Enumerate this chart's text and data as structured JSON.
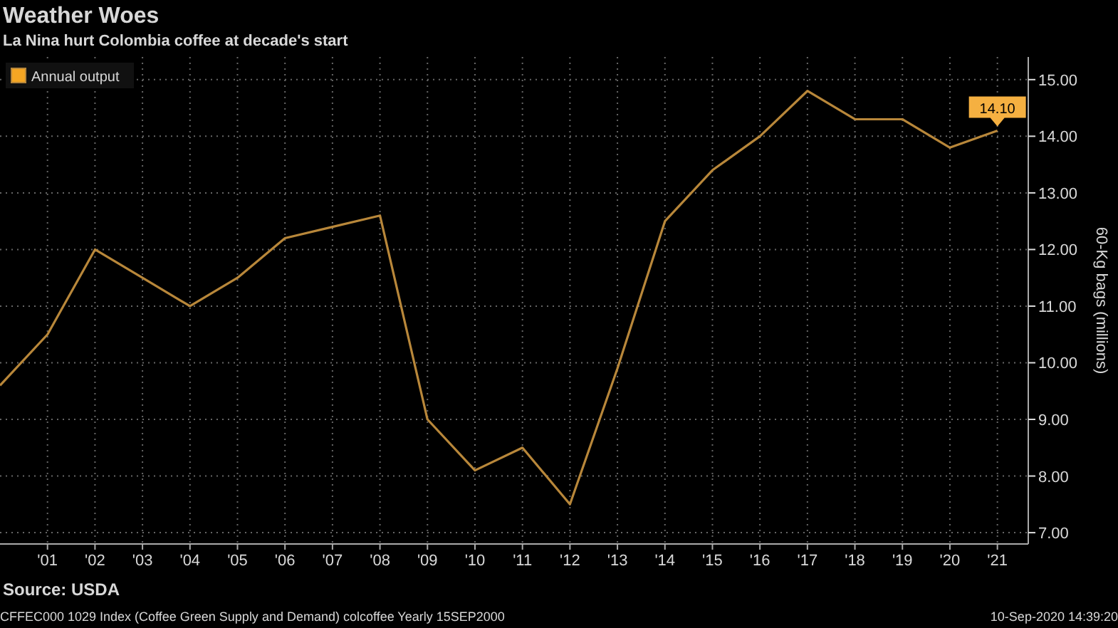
{
  "chart_data": {
    "type": "line",
    "title": "Weather Woes",
    "subtitle": "La Nina hurt Colombia coffee at decade's start",
    "ylabel": "60-Kg bags (millions)",
    "annotations": [
      "Source: USDA",
      "CFFEC000 1029 Index (Coffee Green Supply and Demand) colcoffee  Yearly 15SEP2000",
      "10-Sep-2020 14:39:20"
    ],
    "x": [
      2000,
      2001,
      2002,
      2003,
      2004,
      2005,
      2006,
      2007,
      2008,
      2009,
      2010,
      2011,
      2012,
      2013,
      2014,
      2015,
      2016,
      2017,
      2018,
      2019,
      2020,
      2021
    ],
    "series": [
      {
        "name": "Annual output",
        "color": "#b8873a",
        "values": [
          9.6,
          10.5,
          12.0,
          11.5,
          11.0,
          11.5,
          12.2,
          12.4,
          12.6,
          9.0,
          8.1,
          8.5,
          7.5,
          9.9,
          12.5,
          13.4,
          14.0,
          14.8,
          14.3,
          14.3,
          13.8,
          14.1
        ],
        "value_labels": [
          null,
          null,
          null,
          null,
          null,
          null,
          null,
          null,
          null,
          null,
          null,
          null,
          null,
          null,
          null,
          null,
          null,
          null,
          null,
          null,
          null,
          "14.10"
        ]
      }
    ],
    "xlim": [
      2000,
      2021.65
    ],
    "ylim": [
      6.8,
      15.4
    ],
    "xticks": [
      {
        "value": 2001,
        "label": "'01"
      },
      {
        "value": 2002,
        "label": "'02"
      },
      {
        "value": 2003,
        "label": "'03"
      },
      {
        "value": 2004,
        "label": "'04"
      },
      {
        "value": 2005,
        "label": "'05"
      },
      {
        "value": 2006,
        "label": "'06"
      },
      {
        "value": 2007,
        "label": "'07"
      },
      {
        "value": 2008,
        "label": "'08"
      },
      {
        "value": 2009,
        "label": "'09"
      },
      {
        "value": 2010,
        "label": "'10"
      },
      {
        "value": 2011,
        "label": "'11"
      },
      {
        "value": 2012,
        "label": "'12"
      },
      {
        "value": 2013,
        "label": "'13"
      },
      {
        "value": 2014,
        "label": "'14"
      },
      {
        "value": 2015,
        "label": "'15"
      },
      {
        "value": 2016,
        "label": "'16"
      },
      {
        "value": 2017,
        "label": "'17"
      },
      {
        "value": 2018,
        "label": "'18"
      },
      {
        "value": 2019,
        "label": "'19"
      },
      {
        "value": 2020,
        "label": "'20"
      },
      {
        "value": 2021,
        "label": "'21"
      }
    ],
    "yticks": [
      {
        "value": 7,
        "label": "7.00"
      },
      {
        "value": 8,
        "label": "8.00"
      },
      {
        "value": 9,
        "label": "9.00"
      },
      {
        "value": 10,
        "label": "10.00"
      },
      {
        "value": 11,
        "label": "11.00"
      },
      {
        "value": 12,
        "label": "12.00"
      },
      {
        "value": 13,
        "label": "13.00"
      },
      {
        "value": 14,
        "label": "14.00"
      },
      {
        "value": 15,
        "label": "15.00"
      }
    ],
    "grid": true,
    "legend": "top left",
    "marker": "none",
    "line_style": "solid"
  }
}
